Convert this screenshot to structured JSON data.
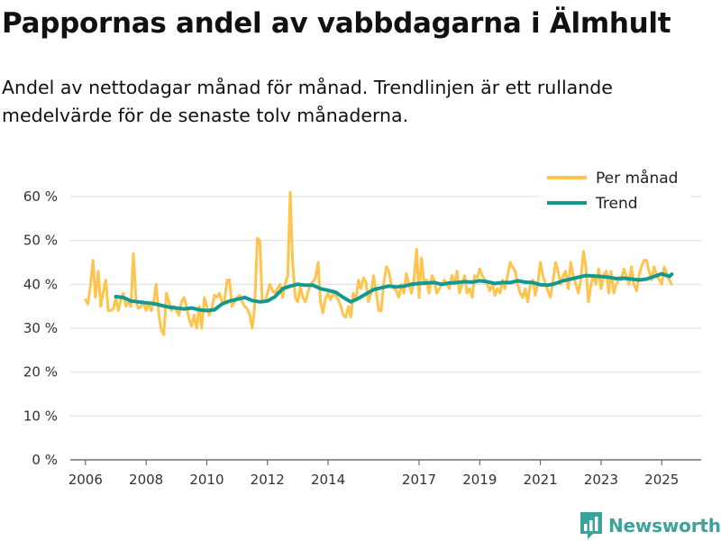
{
  "header": {
    "title": "Pappornas andel av vabbdagarna i Älmhult",
    "subtitle": "Andel av nettodagar månad för månad. Trendlinjen är ett rullande medelvärde för de senaste tolv månaderna."
  },
  "brand": {
    "name": "Newsworthy",
    "color": "#3aa39a"
  },
  "chart_data": {
    "type": "line",
    "title": "Pappornas andel av vabbdagarna i Älmhult",
    "subtitle": "Andel av nettodagar månad för månad. Trendlinjen är ett rullande medelvärde för de senaste tolv månaderna.",
    "xlabel": "",
    "ylabel": "",
    "ylim": [
      0,
      60
    ],
    "xlim": [
      2005.5,
      2026.3
    ],
    "grid": true,
    "legend_position": "top-right",
    "y_ticks": [
      0,
      10,
      20,
      30,
      40,
      50,
      60
    ],
    "y_tick_labels": [
      "0 %",
      "10 %",
      "20 %",
      "30 %",
      "40 %",
      "50 %",
      "60 %"
    ],
    "x_ticks": [
      2006,
      2008,
      2010,
      2012,
      2014,
      2017,
      2019,
      2021,
      2023,
      2025
    ],
    "x_tick_labels": [
      "2006",
      "2008",
      "2010",
      "2012",
      "2014",
      "2017",
      "2019",
      "2021",
      "2023",
      "2025"
    ],
    "series": [
      {
        "name": "Per månad",
        "color": "#ffc44d",
        "x": [
          2006.0,
          2006.08,
          2006.17,
          2006.25,
          2006.33,
          2006.42,
          2006.5,
          2006.58,
          2006.67,
          2006.75,
          2006.83,
          2006.92,
          2007.0,
          2007.08,
          2007.17,
          2007.25,
          2007.33,
          2007.42,
          2007.5,
          2007.58,
          2007.67,
          2007.75,
          2007.83,
          2007.92,
          2008.0,
          2008.08,
          2008.17,
          2008.25,
          2008.33,
          2008.42,
          2008.5,
          2008.58,
          2008.67,
          2008.75,
          2008.83,
          2008.92,
          2009.0,
          2009.08,
          2009.17,
          2009.25,
          2009.33,
          2009.42,
          2009.5,
          2009.58,
          2009.67,
          2009.75,
          2009.83,
          2009.92,
          2010.0,
          2010.08,
          2010.17,
          2010.25,
          2010.33,
          2010.42,
          2010.5,
          2010.58,
          2010.67,
          2010.75,
          2010.83,
          2010.92,
          2011.0,
          2011.08,
          2011.17,
          2011.25,
          2011.33,
          2011.42,
          2011.5,
          2011.58,
          2011.67,
          2011.75,
          2011.83,
          2011.92,
          2012.0,
          2012.08,
          2012.17,
          2012.25,
          2012.33,
          2012.42,
          2012.5,
          2012.58,
          2012.67,
          2012.75,
          2012.83,
          2012.92,
          2013.0,
          2013.08,
          2013.17,
          2013.25,
          2013.33,
          2013.42,
          2013.5,
          2013.58,
          2013.67,
          2013.75,
          2013.83,
          2013.92,
          2014.0,
          2014.08,
          2014.17,
          2014.25,
          2014.33,
          2014.42,
          2014.5,
          2014.58,
          2014.67,
          2014.75,
          2014.83,
          2014.92,
          2015.0,
          2015.08,
          2015.17,
          2015.25,
          2015.33,
          2015.42,
          2015.5,
          2015.58,
          2015.67,
          2015.75,
          2015.83,
          2015.92,
          2016.0,
          2016.08,
          2016.17,
          2016.25,
          2016.33,
          2016.42,
          2016.5,
          2016.58,
          2016.67,
          2016.75,
          2016.83,
          2016.92,
          2017.0,
          2017.08,
          2017.17,
          2017.25,
          2017.33,
          2017.42,
          2017.5,
          2017.58,
          2017.67,
          2017.75,
          2017.83,
          2017.92,
          2018.0,
          2018.08,
          2018.17,
          2018.25,
          2018.33,
          2018.42,
          2018.5,
          2018.58,
          2018.67,
          2018.75,
          2018.83,
          2018.92,
          2019.0,
          2019.08,
          2019.17,
          2019.25,
          2019.33,
          2019.42,
          2019.5,
          2019.58,
          2019.67,
          2019.75,
          2019.83,
          2019.92,
          2020.0,
          2020.08,
          2020.17,
          2020.25,
          2020.33,
          2020.42,
          2020.5,
          2020.58,
          2020.67,
          2020.75,
          2020.83,
          2020.92,
          2021.0,
          2021.08,
          2021.17,
          2021.25,
          2021.33,
          2021.42,
          2021.5,
          2021.58,
          2021.67,
          2021.75,
          2021.83,
          2021.92,
          2022.0,
          2022.08,
          2022.17,
          2022.25,
          2022.33,
          2022.42,
          2022.5,
          2022.58,
          2022.67,
          2022.75,
          2022.83,
          2022.92,
          2023.0,
          2023.08,
          2023.17,
          2023.25,
          2023.33,
          2023.42,
          2023.5,
          2023.58,
          2023.67,
          2023.75,
          2023.83,
          2023.92,
          2024.0,
          2024.08,
          2024.17,
          2024.25,
          2024.33,
          2024.42,
          2024.5,
          2024.58,
          2024.67,
          2024.75,
          2024.83,
          2024.92,
          2025.0,
          2025.08,
          2025.17,
          2025.25,
          2025.33
        ],
        "values": [
          36.5,
          35.5,
          40.0,
          45.5,
          37.0,
          43.0,
          35.0,
          38.0,
          41.0,
          34.0,
          34.0,
          34.5,
          37.0,
          34.0,
          36.5,
          38.0,
          35.0,
          36.0,
          35.0,
          47.0,
          36.0,
          34.5,
          35.0,
          36.0,
          34.0,
          35.5,
          34.0,
          36.0,
          40.0,
          33.0,
          29.5,
          28.5,
          38.0,
          36.0,
          34.0,
          35.0,
          34.0,
          33.0,
          36.0,
          37.0,
          35.0,
          32.0,
          30.5,
          33.0,
          30.0,
          35.0,
          30.0,
          37.0,
          35.0,
          33.0,
          34.5,
          37.5,
          37.0,
          38.0,
          36.0,
          36.0,
          41.0,
          41.0,
          35.0,
          36.0,
          37.0,
          37.5,
          36.0,
          35.0,
          34.5,
          33.0,
          30.0,
          35.0,
          50.5,
          50.0,
          36.0,
          36.0,
          38.0,
          40.0,
          38.5,
          38.0,
          39.0,
          40.0,
          37.0,
          40.0,
          42.0,
          61.0,
          45.0,
          37.0,
          36.0,
          39.5,
          37.0,
          36.0,
          38.0,
          40.0,
          40.5,
          41.5,
          45.0,
          36.0,
          33.5,
          37.0,
          38.0,
          36.5,
          38.0,
          37.5,
          36.5,
          35.0,
          33.0,
          32.5,
          35.0,
          32.5,
          38.0,
          36.5,
          41.0,
          39.0,
          41.5,
          40.5,
          36.0,
          38.0,
          42.0,
          38.5,
          34.0,
          34.0,
          40.0,
          44.0,
          43.0,
          40.0,
          39.0,
          38.5,
          37.0,
          40.0,
          38.0,
          42.5,
          40.0,
          38.0,
          41.0,
          48.0,
          37.0,
          46.0,
          40.0,
          41.0,
          38.0,
          42.0,
          41.0,
          38.0,
          39.0,
          40.0,
          41.0,
          40.0,
          39.0,
          42.0,
          40.0,
          43.0,
          38.0,
          40.0,
          42.0,
          38.0,
          39.0,
          37.0,
          42.0,
          41.5,
          43.5,
          42.0,
          41.0,
          40.0,
          38.5,
          40.0,
          37.5,
          39.0,
          38.0,
          41.0,
          39.0,
          42.0,
          45.0,
          44.0,
          43.0,
          40.0,
          38.0,
          37.0,
          39.0,
          36.0,
          40.0,
          41.0,
          37.5,
          40.5,
          45.0,
          42.0,
          40.0,
          38.5,
          37.0,
          41.0,
          45.0,
          43.0,
          40.0,
          42.0,
          43.0,
          39.0,
          45.0,
          42.0,
          40.0,
          38.0,
          41.0,
          47.5,
          44.0,
          36.0,
          40.0,
          42.0,
          40.0,
          43.5,
          39.0,
          42.0,
          43.0,
          38.0,
          43.0,
          38.0,
          40.0,
          41.0,
          41.0,
          43.5,
          42.0,
          40.0,
          44.0,
          40.0,
          38.5,
          42.0,
          44.0,
          45.5,
          45.5,
          43.0,
          41.0,
          44.0,
          42.0,
          41.0,
          40.0,
          44.0,
          42.5,
          41.0,
          40.0
        ]
      },
      {
        "name": "Trend",
        "color": "#13998f",
        "x": [
          2007.0,
          2007.25,
          2007.5,
          2007.75,
          2008.0,
          2008.25,
          2008.5,
          2008.75,
          2009.0,
          2009.25,
          2009.5,
          2009.75,
          2010.0,
          2010.25,
          2010.5,
          2010.75,
          2011.0,
          2011.25,
          2011.5,
          2011.75,
          2012.0,
          2012.25,
          2012.5,
          2012.75,
          2013.0,
          2013.25,
          2013.5,
          2013.75,
          2014.0,
          2014.25,
          2014.5,
          2014.75,
          2015.0,
          2015.25,
          2015.5,
          2015.75,
          2016.0,
          2016.25,
          2016.5,
          2016.75,
          2017.0,
          2017.25,
          2017.5,
          2017.75,
          2018.0,
          2018.25,
          2018.5,
          2018.75,
          2019.0,
          2019.25,
          2019.5,
          2019.75,
          2020.0,
          2020.25,
          2020.5,
          2020.75,
          2021.0,
          2021.25,
          2021.5,
          2021.75,
          2022.0,
          2022.25,
          2022.5,
          2022.75,
          2023.0,
          2023.25,
          2023.5,
          2023.75,
          2024.0,
          2024.25,
          2024.5,
          2024.75,
          2025.0,
          2025.25,
          2025.33
        ],
        "values": [
          37.2,
          37.0,
          36.2,
          36.0,
          35.8,
          35.6,
          35.2,
          34.8,
          34.6,
          34.4,
          34.6,
          34.2,
          34.0,
          34.2,
          35.5,
          36.2,
          36.6,
          37.0,
          36.3,
          36.0,
          36.2,
          37.2,
          39.0,
          39.6,
          40.0,
          39.8,
          39.8,
          39.0,
          38.6,
          38.2,
          37.0,
          36.0,
          36.8,
          37.8,
          38.8,
          39.2,
          39.6,
          39.4,
          39.6,
          40.0,
          40.2,
          40.3,
          40.4,
          40.0,
          40.3,
          40.4,
          40.6,
          40.5,
          40.8,
          40.6,
          40.2,
          40.4,
          40.4,
          40.8,
          40.5,
          40.4,
          39.9,
          39.8,
          40.2,
          40.8,
          41.2,
          41.6,
          42.0,
          41.9,
          41.8,
          41.6,
          41.3,
          41.4,
          41.2,
          41.0,
          41.2,
          41.8,
          42.4,
          41.8,
          42.3
        ]
      }
    ]
  }
}
